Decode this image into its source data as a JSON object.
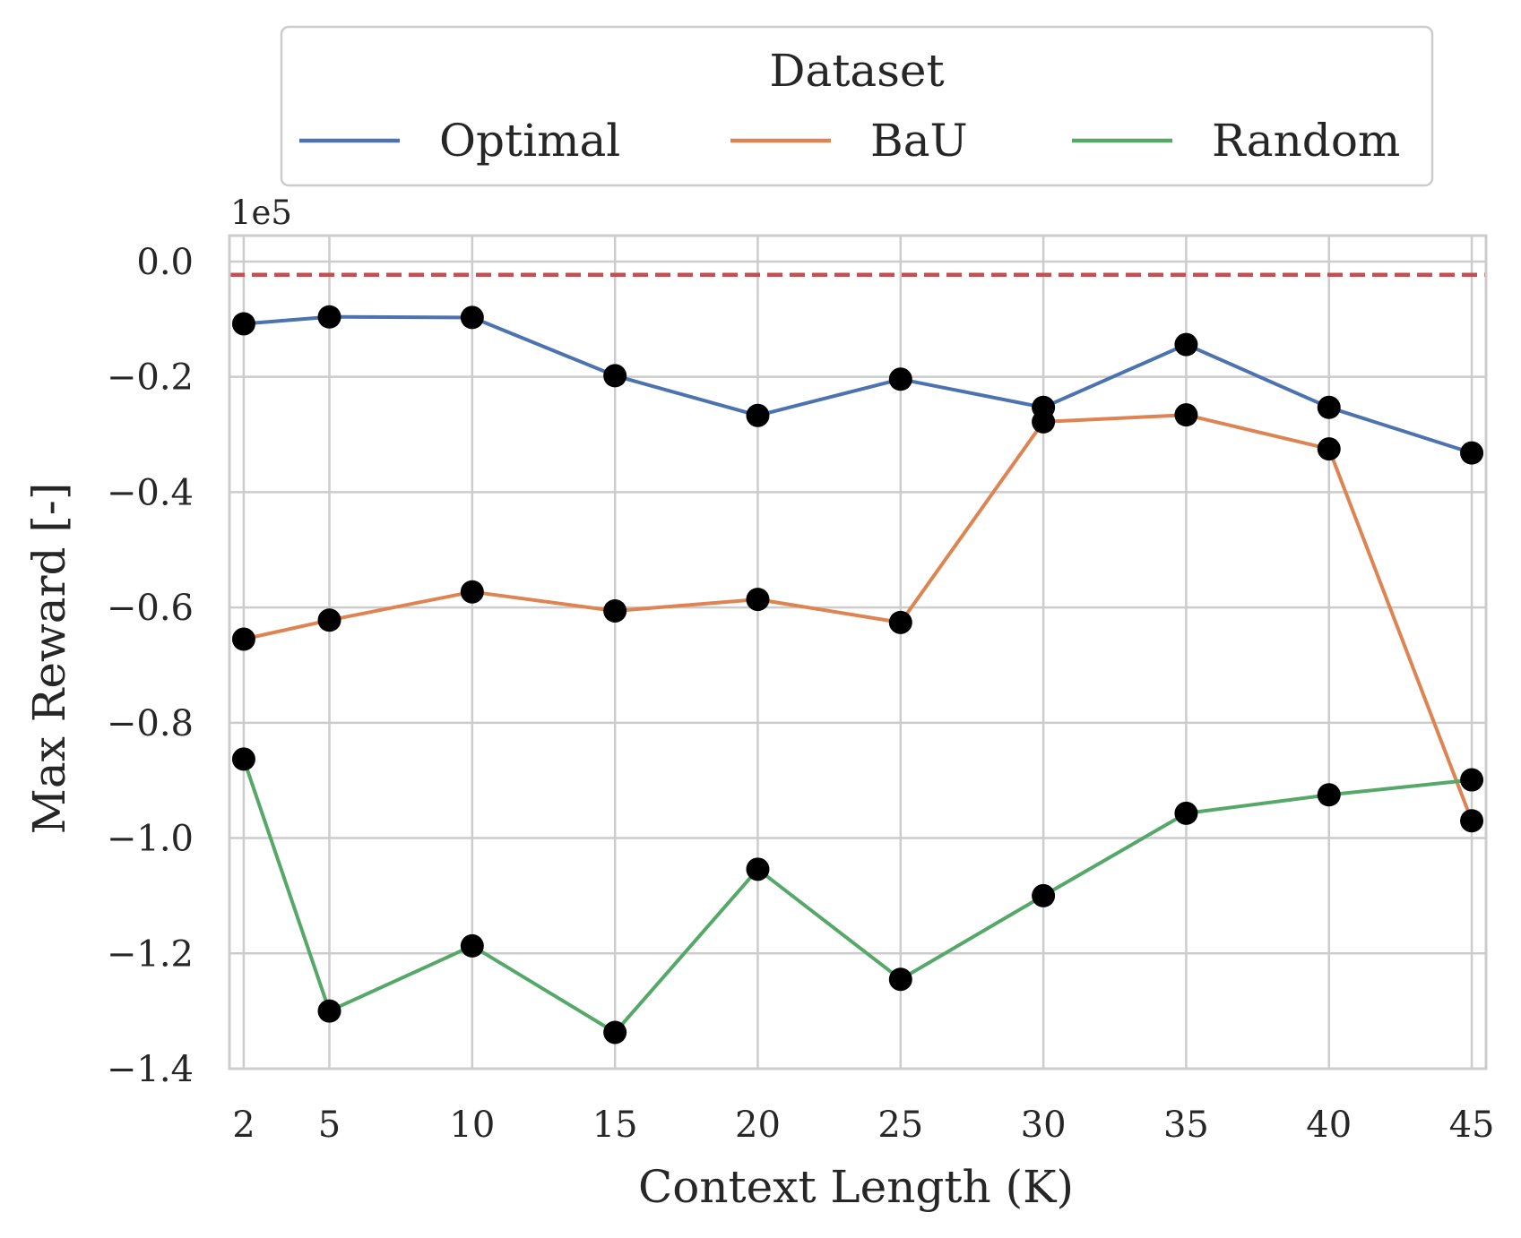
{
  "chart_data": {
    "type": "line",
    "xlabel": "Context Length (K)",
    "ylabel": "Max Reward [-]",
    "y_offset_label": "1e5",
    "x": [
      2,
      5,
      10,
      15,
      20,
      25,
      30,
      35,
      40,
      45
    ],
    "x_ticks": [
      "2",
      "5",
      "10",
      "15",
      "20",
      "25",
      "30",
      "35",
      "40",
      "45"
    ],
    "y_ticks": [
      {
        "value": 0.0,
        "label": "0.0"
      },
      {
        "value": -0.2,
        "label": "−0.2"
      },
      {
        "value": -0.4,
        "label": "−0.4"
      },
      {
        "value": -0.6,
        "label": "−0.6"
      },
      {
        "value": -0.8,
        "label": "−0.8"
      },
      {
        "value": -1.0,
        "label": "−1.0"
      },
      {
        "value": -1.2,
        "label": "−1.2"
      },
      {
        "value": -1.4,
        "label": "−1.4"
      }
    ],
    "xlim": [
      1.5,
      45.5
    ],
    "ylim": [
      -1.4,
      0.045
    ],
    "grid": true,
    "legend": {
      "title": "Dataset",
      "placement": "top-center"
    },
    "series": [
      {
        "name": "Optimal",
        "color": "#4c72b0",
        "values": [
          -0.108,
          -0.096,
          -0.097,
          -0.198,
          -0.267,
          -0.204,
          -0.253,
          -0.144,
          -0.253,
          -0.332
        ]
      },
      {
        "name": "BaU",
        "color": "#dd8452",
        "values": [
          -0.655,
          -0.622,
          -0.573,
          -0.606,
          -0.586,
          -0.626,
          -0.278,
          -0.266,
          -0.325,
          -0.97
        ]
      },
      {
        "name": "Random",
        "color": "#55a868",
        "values": [
          -0.863,
          -1.3,
          -1.187,
          -1.337,
          -1.054,
          -1.245,
          -1.1,
          -0.957,
          -0.925,
          -0.899
        ]
      }
    ],
    "reference_line": {
      "value": -0.023,
      "color": "#c44e52",
      "style": "dashed"
    },
    "marker_color": "#000000"
  }
}
